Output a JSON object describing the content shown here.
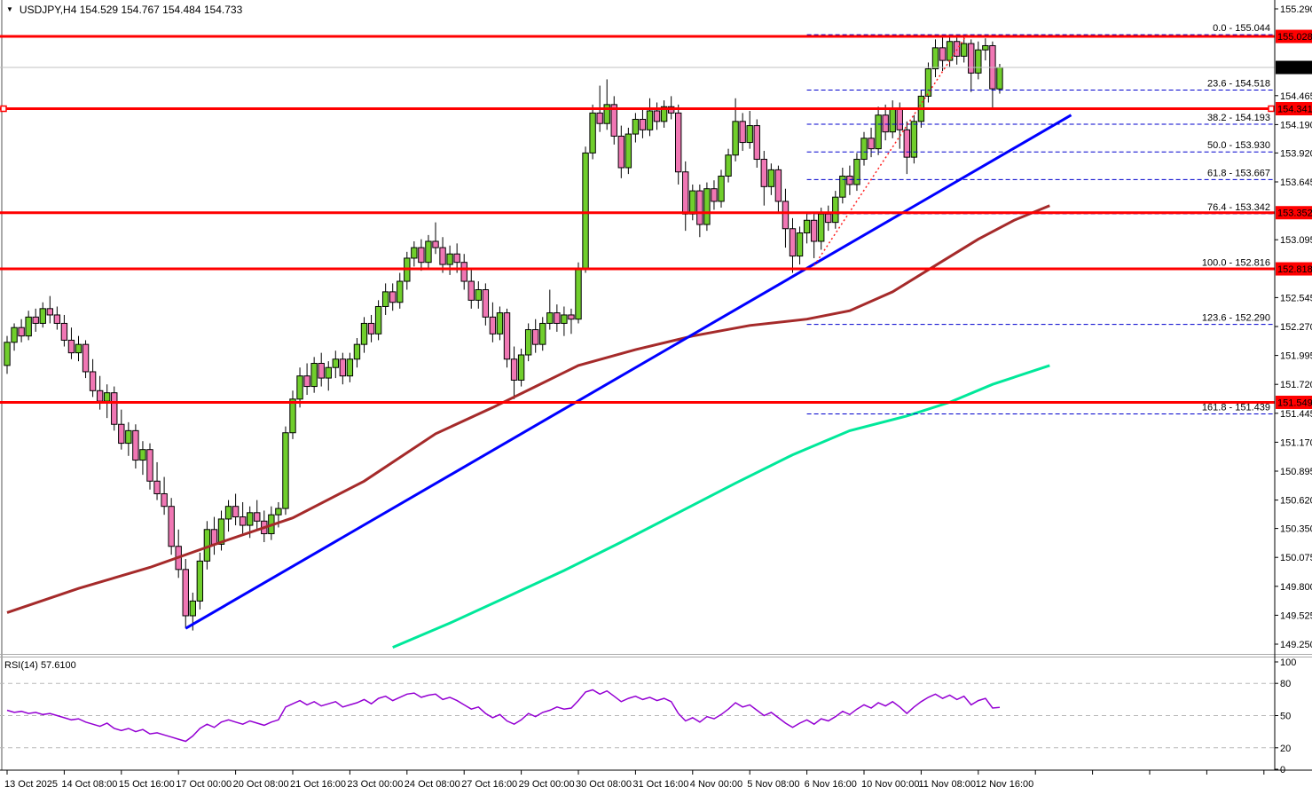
{
  "header": {
    "dropdown_icon": "▼",
    "title": "USDJPY,H4  154.529 154.767 154.484 154.733"
  },
  "chart_data": {
    "type": "candlestick",
    "symbol": "USDJPY",
    "timeframe": "H4",
    "title": "USDJPY,H4  154.529 154.767 154.484 154.733",
    "last_candle": {
      "open": 154.529,
      "high": 154.767,
      "low": 154.484,
      "close": 154.733
    },
    "current_price": 154.733,
    "colors": {
      "bull": "#70CE2C",
      "bear": "#F077B4",
      "wick": "#000000",
      "level_line": "#FF0000",
      "fib": "#0000CD",
      "fib_ref": "#FF2020",
      "trendline": "#0000FF",
      "ma_slow": "#A52A2A",
      "ma_fast": "#00E89A",
      "rsi": "#9400D3",
      "current_line": "#C0C0C0",
      "tag_red": "#FF0000",
      "tag_black": "#000000"
    },
    "y_axis": {
      "min": 149.25,
      "max": 155.29,
      "ticks": [
        "155.290",
        "154.465",
        "154.190",
        "153.920",
        "153.645",
        "153.095",
        "152.545",
        "152.270",
        "151.995",
        "151.720",
        "151.445",
        "151.170",
        "150.895",
        "150.620",
        "150.350",
        "150.075",
        "149.800",
        "149.525",
        "149.250"
      ]
    },
    "x_axis": {
      "labels": [
        "13 Oct 2025",
        "14 Oct 08:00",
        "15 Oct 16:00",
        "17 Oct 00:00",
        "20 Oct 08:00",
        "21 Oct 16:00",
        "23 Oct 00:00",
        "24 Oct 08:00",
        "27 Oct 16:00",
        "29 Oct 00:00",
        "30 Oct 08:00",
        "31 Oct 16:00",
        "4 Nov 00:00",
        "5 Nov 08:00",
        "6 Nov 16:00",
        "10 Nov 00:00",
        "11 Nov 08:00",
        "12 Nov 16:00"
      ],
      "candles_per_label": 8
    },
    "horizontal_lines": [
      {
        "price": 155.028,
        "tag": "155.028"
      },
      {
        "price": 154.341,
        "tag": "154.341",
        "handles": true
      },
      {
        "price": 153.352,
        "tag": "153.352"
      },
      {
        "price": 152.818,
        "tag": "152.818"
      },
      {
        "price": 151.549,
        "tag": "151.549"
      }
    ],
    "fibonacci": {
      "start_index": 112,
      "ref_from": [
        112.7,
        152.816
      ],
      "ref_to": [
        134.4,
        155.044
      ],
      "levels": [
        {
          "label": "0.0 - 155.044",
          "price": 155.044
        },
        {
          "label": "23.6 - 154.518",
          "price": 154.518
        },
        {
          "label": "38.2 - 154.193",
          "price": 154.193
        },
        {
          "label": "50.0 - 153.930",
          "price": 153.93
        },
        {
          "label": "61.8 - 153.667",
          "price": 153.667
        },
        {
          "label": "76.4 - 153.342",
          "price": 153.342
        },
        {
          "label": "100.0 - 152.816",
          "price": 152.816
        },
        {
          "label": "123.6 - 152.290",
          "price": 152.29
        },
        {
          "label": "161.8 - 151.439",
          "price": 151.439
        }
      ]
    },
    "trendline": {
      "from": [
        25,
        149.4
      ],
      "to": [
        149,
        154.28
      ]
    },
    "ma_slow_points": [
      [
        0,
        149.55
      ],
      [
        10,
        149.78
      ],
      [
        20,
        149.98
      ],
      [
        30,
        150.22
      ],
      [
        40,
        150.45
      ],
      [
        50,
        150.8
      ],
      [
        60,
        151.25
      ],
      [
        68,
        151.5
      ],
      [
        74,
        151.7
      ],
      [
        80,
        151.9
      ],
      [
        88,
        152.05
      ],
      [
        96,
        152.18
      ],
      [
        104,
        152.28
      ],
      [
        112,
        152.34
      ],
      [
        118,
        152.42
      ],
      [
        124,
        152.6
      ],
      [
        130,
        152.85
      ],
      [
        136,
        153.1
      ],
      [
        141,
        153.28
      ],
      [
        146,
        153.42
      ]
    ],
    "ma_fast_points": [
      [
        54,
        149.22
      ],
      [
        62,
        149.45
      ],
      [
        70,
        149.7
      ],
      [
        78,
        149.95
      ],
      [
        86,
        150.22
      ],
      [
        94,
        150.5
      ],
      [
        102,
        150.78
      ],
      [
        110,
        151.05
      ],
      [
        118,
        151.28
      ],
      [
        126,
        151.42
      ],
      [
        132,
        151.55
      ],
      [
        138,
        151.72
      ],
      [
        146,
        151.9
      ]
    ],
    "candles": [
      [
        151.9,
        152.18,
        151.82,
        152.12
      ],
      [
        152.12,
        152.3,
        152.04,
        152.26
      ],
      [
        152.26,
        152.34,
        152.12,
        152.18
      ],
      [
        152.18,
        152.42,
        152.14,
        152.36
      ],
      [
        152.36,
        152.44,
        152.22,
        152.3
      ],
      [
        152.3,
        152.5,
        152.26,
        152.44
      ],
      [
        152.44,
        152.56,
        152.3,
        152.38
      ],
      [
        152.38,
        152.46,
        152.24,
        152.3
      ],
      [
        152.3,
        152.38,
        152.08,
        152.14
      ],
      [
        152.14,
        152.26,
        151.96,
        152.02
      ],
      [
        152.02,
        152.18,
        151.94,
        152.1
      ],
      [
        152.1,
        152.14,
        151.78,
        151.84
      ],
      [
        151.84,
        151.96,
        151.6,
        151.66
      ],
      [
        151.66,
        151.8,
        151.48,
        151.56
      ],
      [
        151.56,
        151.72,
        151.4,
        151.64
      ],
      [
        151.64,
        151.7,
        151.28,
        151.34
      ],
      [
        151.34,
        151.48,
        151.1,
        151.16
      ],
      [
        151.16,
        151.36,
        151.04,
        151.28
      ],
      [
        151.28,
        151.34,
        150.92,
        151.0
      ],
      [
        151.0,
        151.18,
        150.86,
        151.1
      ],
      [
        151.1,
        151.16,
        150.72,
        150.8
      ],
      [
        150.8,
        150.98,
        150.62,
        150.68
      ],
      [
        150.68,
        150.84,
        150.48,
        150.56
      ],
      [
        150.56,
        150.64,
        150.1,
        150.18
      ],
      [
        150.18,
        150.34,
        149.88,
        149.96
      ],
      [
        149.96,
        150.06,
        149.4,
        149.52
      ],
      [
        149.52,
        149.74,
        149.38,
        149.66
      ],
      [
        149.66,
        150.12,
        149.58,
        150.04
      ],
      [
        150.04,
        150.42,
        149.96,
        150.34
      ],
      [
        150.34,
        150.46,
        150.1,
        150.2
      ],
      [
        150.2,
        150.52,
        150.14,
        150.44
      ],
      [
        150.44,
        150.62,
        150.32,
        150.56
      ],
      [
        150.56,
        150.68,
        150.38,
        150.46
      ],
      [
        150.46,
        150.6,
        150.3,
        150.38
      ],
      [
        150.38,
        150.56,
        150.26,
        150.5
      ],
      [
        150.5,
        150.62,
        150.34,
        150.42
      ],
      [
        150.42,
        150.52,
        150.22,
        150.3
      ],
      [
        150.3,
        150.56,
        150.24,
        150.48
      ],
      [
        150.48,
        150.6,
        150.36,
        150.54
      ],
      [
        150.54,
        151.32,
        150.48,
        151.26
      ],
      [
        151.26,
        151.66,
        151.2,
        151.58
      ],
      [
        151.58,
        151.88,
        151.5,
        151.8
      ],
      [
        151.8,
        151.92,
        151.62,
        151.7
      ],
      [
        151.7,
        151.98,
        151.64,
        151.92
      ],
      [
        151.92,
        152.02,
        151.7,
        151.78
      ],
      [
        151.78,
        151.94,
        151.66,
        151.88
      ],
      [
        151.88,
        152.04,
        151.78,
        151.96
      ],
      [
        151.96,
        152.02,
        151.72,
        151.8
      ],
      [
        151.8,
        152.02,
        151.74,
        151.96
      ],
      [
        151.96,
        152.16,
        151.88,
        152.1
      ],
      [
        152.1,
        152.36,
        152.02,
        152.3
      ],
      [
        152.3,
        152.38,
        152.12,
        152.2
      ],
      [
        152.2,
        152.52,
        152.14,
        152.46
      ],
      [
        152.46,
        152.68,
        152.38,
        152.6
      ],
      [
        152.6,
        152.68,
        152.42,
        152.5
      ],
      [
        152.5,
        152.78,
        152.44,
        152.7
      ],
      [
        152.7,
        152.98,
        152.62,
        152.92
      ],
      [
        152.92,
        153.08,
        152.84,
        153.02
      ],
      [
        153.02,
        153.1,
        152.8,
        152.88
      ],
      [
        152.88,
        153.14,
        152.82,
        153.08
      ],
      [
        153.08,
        153.26,
        152.96,
        153.02
      ],
      [
        153.02,
        153.12,
        152.78,
        152.86
      ],
      [
        152.86,
        153.04,
        152.76,
        152.96
      ],
      [
        152.96,
        153.06,
        152.78,
        152.88
      ],
      [
        152.88,
        152.96,
        152.62,
        152.7
      ],
      [
        152.7,
        152.82,
        152.44,
        152.52
      ],
      [
        152.52,
        152.7,
        152.44,
        152.62
      ],
      [
        152.62,
        152.68,
        152.28,
        152.36
      ],
      [
        152.36,
        152.5,
        152.12,
        152.2
      ],
      [
        152.2,
        152.46,
        152.14,
        152.4
      ],
      [
        152.4,
        152.44,
        151.88,
        151.96
      ],
      [
        151.96,
        152.08,
        151.58,
        151.76
      ],
      [
        151.76,
        152.06,
        151.7,
        152.0
      ],
      [
        152.0,
        152.3,
        151.94,
        152.24
      ],
      [
        152.24,
        152.34,
        152.02,
        152.1
      ],
      [
        152.1,
        152.36,
        152.04,
        152.3
      ],
      [
        152.3,
        152.62,
        152.24,
        152.4
      ],
      [
        152.4,
        152.48,
        152.22,
        152.3
      ],
      [
        152.3,
        152.46,
        152.18,
        152.38
      ],
      [
        152.38,
        152.44,
        152.2,
        152.34
      ],
      [
        152.34,
        152.88,
        152.3,
        152.82
      ],
      [
        152.82,
        153.98,
        152.78,
        153.92
      ],
      [
        153.92,
        154.38,
        153.86,
        154.3
      ],
      [
        154.3,
        154.56,
        154.12,
        154.2
      ],
      [
        154.2,
        154.62,
        154.14,
        154.38
      ],
      [
        154.38,
        154.46,
        154.0,
        154.08
      ],
      [
        154.08,
        154.18,
        153.68,
        153.78
      ],
      [
        153.78,
        154.16,
        153.72,
        154.1
      ],
      [
        154.1,
        154.3,
        154.02,
        154.24
      ],
      [
        154.24,
        154.34,
        154.06,
        154.14
      ],
      [
        154.14,
        154.44,
        154.08,
        154.32
      ],
      [
        154.32,
        154.4,
        154.14,
        154.22
      ],
      [
        154.22,
        154.42,
        154.16,
        154.36
      ],
      [
        154.36,
        154.46,
        154.24,
        154.3
      ],
      [
        154.3,
        154.38,
        153.62,
        153.74
      ],
      [
        153.74,
        153.84,
        153.18,
        153.34
      ],
      [
        153.34,
        153.62,
        153.28,
        153.56
      ],
      [
        153.56,
        153.62,
        153.12,
        153.24
      ],
      [
        153.24,
        153.64,
        153.18,
        153.58
      ],
      [
        153.58,
        153.66,
        153.38,
        153.46
      ],
      [
        153.46,
        153.76,
        153.4,
        153.7
      ],
      [
        153.7,
        153.96,
        153.64,
        153.9
      ],
      [
        153.9,
        154.44,
        153.84,
        154.22
      ],
      [
        154.22,
        154.3,
        153.94,
        154.02
      ],
      [
        154.02,
        154.32,
        153.96,
        154.18
      ],
      [
        154.18,
        154.24,
        153.78,
        153.86
      ],
      [
        153.86,
        153.94,
        153.42,
        153.6
      ],
      [
        153.6,
        153.82,
        153.52,
        153.76
      ],
      [
        153.76,
        153.8,
        153.36,
        153.46
      ],
      [
        153.46,
        153.58,
        153.02,
        153.2
      ],
      [
        153.2,
        153.3,
        152.78,
        152.94
      ],
      [
        152.94,
        153.22,
        152.86,
        153.16
      ],
      [
        153.16,
        153.36,
        153.06,
        153.28
      ],
      [
        153.28,
        153.34,
        152.92,
        153.08
      ],
      [
        153.08,
        153.4,
        153.0,
        153.34
      ],
      [
        153.34,
        153.42,
        153.18,
        153.26
      ],
      [
        153.26,
        153.56,
        153.2,
        153.5
      ],
      [
        153.5,
        153.78,
        153.44,
        153.7
      ],
      [
        153.7,
        153.8,
        153.52,
        153.62
      ],
      [
        153.62,
        153.92,
        153.56,
        153.86
      ],
      [
        153.86,
        154.12,
        153.8,
        154.06
      ],
      [
        154.06,
        154.16,
        153.88,
        153.96
      ],
      [
        153.96,
        154.36,
        153.9,
        154.28
      ],
      [
        154.28,
        154.38,
        154.04,
        154.12
      ],
      [
        154.12,
        154.42,
        154.06,
        154.34
      ],
      [
        154.34,
        154.4,
        153.96,
        154.14
      ],
      [
        154.14,
        154.22,
        153.72,
        153.88
      ],
      [
        153.88,
        154.28,
        153.82,
        154.22
      ],
      [
        154.22,
        154.52,
        154.16,
        154.46
      ],
      [
        154.46,
        154.78,
        154.4,
        154.72
      ],
      [
        154.72,
        155.0,
        154.64,
        154.92
      ],
      [
        154.92,
        155.02,
        154.7,
        154.8
      ],
      [
        154.8,
        155.04,
        154.74,
        154.98
      ],
      [
        154.98,
        155.02,
        154.76,
        154.84
      ],
      [
        154.84,
        155.02,
        154.78,
        154.96
      ],
      [
        154.96,
        155.0,
        154.5,
        154.68
      ],
      [
        154.68,
        154.98,
        154.62,
        154.9
      ],
      [
        154.9,
        155.01,
        154.8,
        154.94
      ],
      [
        154.94,
        154.98,
        154.35,
        154.53
      ],
      [
        154.529,
        154.767,
        154.484,
        154.733
      ]
    ],
    "rsi": {
      "label": "RSI(14) 57.6100",
      "period": 14,
      "value": 57.61,
      "levels": [
        80,
        50,
        20
      ],
      "axis_labels": [
        "100",
        "80",
        "50",
        "20",
        "0"
      ],
      "values": [
        55,
        53,
        54,
        52,
        53,
        51,
        52,
        50,
        48,
        46,
        47,
        44,
        42,
        40,
        43,
        38,
        36,
        38,
        35,
        37,
        33,
        34,
        32,
        30,
        28,
        26,
        31,
        38,
        42,
        39,
        44,
        46,
        44,
        42,
        45,
        43,
        41,
        44,
        46,
        58,
        61,
        64,
        60,
        63,
        59,
        61,
        63,
        58,
        60,
        62,
        65,
        61,
        66,
        68,
        64,
        67,
        70,
        71,
        67,
        69,
        70,
        65,
        67,
        64,
        60,
        56,
        58,
        52,
        48,
        51,
        45,
        42,
        46,
        52,
        49,
        53,
        55,
        58,
        56,
        57,
        64,
        72,
        74,
        70,
        73,
        68,
        63,
        66,
        68,
        65,
        67,
        64,
        66,
        63,
        52,
        45,
        48,
        44,
        49,
        47,
        51,
        56,
        62,
        58,
        60,
        55,
        50,
        53,
        48,
        43,
        39,
        43,
        46,
        42,
        47,
        45,
        49,
        54,
        51,
        56,
        60,
        57,
        62,
        59,
        63,
        58,
        52,
        58,
        63,
        67,
        70,
        66,
        69,
        65,
        68,
        60,
        64,
        66,
        57,
        57.6
      ]
    }
  }
}
